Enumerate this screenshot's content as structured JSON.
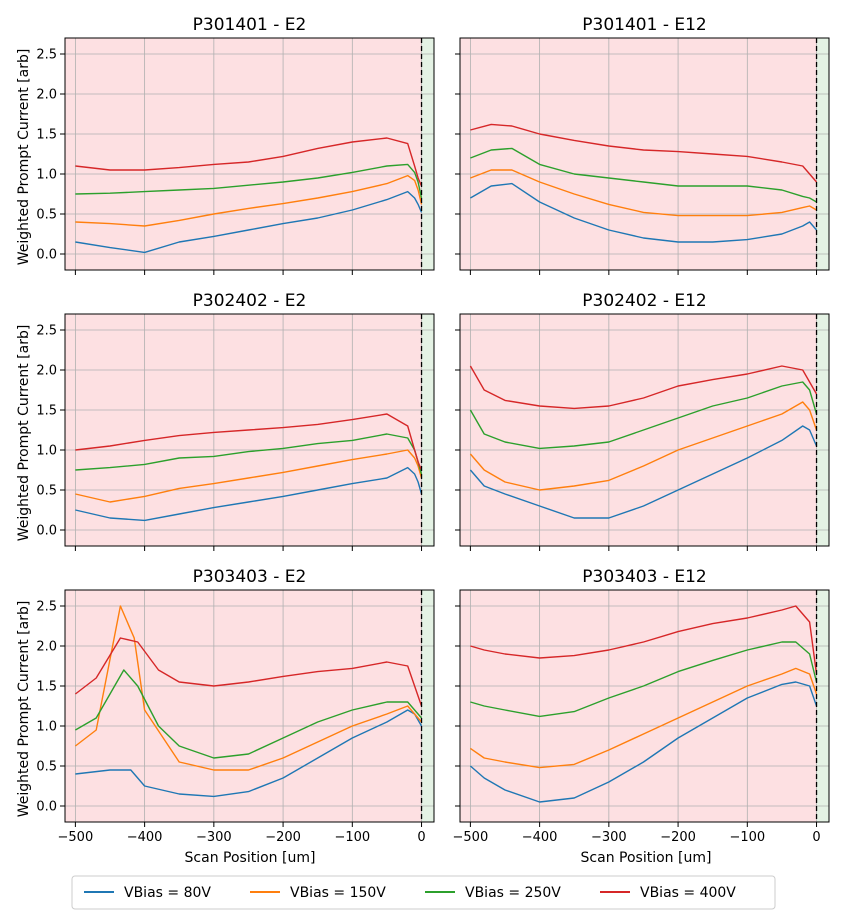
{
  "figure": {
    "ylabel": "Weighted Prompt Current [arb]",
    "xlabel": "Scan Position [um]",
    "colors": {
      "region_main": "#fde0e2",
      "region_edge": "#e4f2e4",
      "grid": "#b0b0b0"
    }
  },
  "legend": [
    {
      "label": "VBias = 80V",
      "color": "#1f77b4"
    },
    {
      "label": "VBias = 150V",
      "color": "#ff7f0e"
    },
    {
      "label": "VBias = 250V",
      "color": "#2ca02c"
    },
    {
      "label": "VBias = 400V",
      "color": "#d62728"
    }
  ],
  "chart_data": [
    {
      "type": "line",
      "title": "P301401 - E2",
      "xlabel": "",
      "ylabel": "Weighted Prompt Current [arb]",
      "xlim": [
        -515,
        18
      ],
      "ylim": [
        -0.2,
        2.7
      ],
      "xticks": [
        -500,
        -400,
        -300,
        -200,
        -100,
        0
      ],
      "yticks": [
        0.0,
        0.5,
        1.0,
        1.5,
        2.0,
        2.5
      ],
      "edge_marker_x": 0,
      "grid": true,
      "series": [
        {
          "name": "VBias = 80V",
          "x": [
            -500,
            -450,
            -400,
            -350,
            -300,
            -250,
            -200,
            -150,
            -100,
            -50,
            -20,
            -10,
            -5,
            0
          ],
          "values": [
            0.15,
            0.08,
            0.02,
            0.15,
            0.22,
            0.3,
            0.38,
            0.45,
            0.55,
            0.68,
            0.78,
            0.7,
            0.62,
            0.52
          ]
        },
        {
          "name": "VBias = 150V",
          "x": [
            -500,
            -450,
            -400,
            -350,
            -300,
            -250,
            -200,
            -150,
            -100,
            -50,
            -20,
            -10,
            -5,
            0
          ],
          "values": [
            0.4,
            0.38,
            0.35,
            0.42,
            0.5,
            0.57,
            0.63,
            0.7,
            0.78,
            0.88,
            0.98,
            0.92,
            0.8,
            0.62
          ]
        },
        {
          "name": "VBias = 250V",
          "x": [
            -500,
            -450,
            -400,
            -350,
            -300,
            -250,
            -200,
            -150,
            -100,
            -50,
            -20,
            -10,
            -5,
            0
          ],
          "values": [
            0.75,
            0.76,
            0.78,
            0.8,
            0.82,
            0.86,
            0.9,
            0.95,
            1.02,
            1.1,
            1.12,
            1.02,
            0.9,
            0.7
          ]
        },
        {
          "name": "VBias = 400V",
          "x": [
            -500,
            -450,
            -400,
            -350,
            -300,
            -250,
            -200,
            -150,
            -100,
            -50,
            -20,
            -10,
            -5,
            0
          ],
          "values": [
            1.1,
            1.05,
            1.05,
            1.08,
            1.12,
            1.15,
            1.22,
            1.32,
            1.4,
            1.45,
            1.38,
            1.1,
            0.95,
            0.85
          ]
        }
      ]
    },
    {
      "type": "line",
      "title": "P301401 - E12",
      "xlabel": "",
      "ylabel": "",
      "xlim": [
        -515,
        18
      ],
      "ylim": [
        -0.2,
        2.7
      ],
      "xticks": [
        -500,
        -400,
        -300,
        -200,
        -100,
        0
      ],
      "yticks": [
        0.0,
        0.5,
        1.0,
        1.5,
        2.0,
        2.5
      ],
      "edge_marker_x": 0,
      "grid": true,
      "series": [
        {
          "name": "VBias = 80V",
          "x": [
            -500,
            -470,
            -440,
            -400,
            -350,
            -300,
            -250,
            -200,
            -150,
            -100,
            -50,
            -20,
            -10,
            0
          ],
          "values": [
            0.7,
            0.85,
            0.88,
            0.65,
            0.45,
            0.3,
            0.2,
            0.15,
            0.15,
            0.18,
            0.25,
            0.35,
            0.4,
            0.3
          ]
        },
        {
          "name": "VBias = 150V",
          "x": [
            -500,
            -470,
            -440,
            -400,
            -350,
            -300,
            -250,
            -200,
            -150,
            -100,
            -50,
            -20,
            -10,
            0
          ],
          "values": [
            0.95,
            1.05,
            1.05,
            0.9,
            0.75,
            0.62,
            0.52,
            0.48,
            0.48,
            0.48,
            0.52,
            0.58,
            0.6,
            0.55
          ]
        },
        {
          "name": "VBias = 250V",
          "x": [
            -500,
            -470,
            -440,
            -400,
            -350,
            -300,
            -250,
            -200,
            -150,
            -100,
            -50,
            -20,
            -10,
            0
          ],
          "values": [
            1.2,
            1.3,
            1.32,
            1.12,
            1.0,
            0.95,
            0.9,
            0.85,
            0.85,
            0.85,
            0.8,
            0.72,
            0.7,
            0.65
          ]
        },
        {
          "name": "VBias = 400V",
          "x": [
            -500,
            -470,
            -440,
            -400,
            -350,
            -300,
            -250,
            -200,
            -150,
            -100,
            -50,
            -20,
            -10,
            0
          ],
          "values": [
            1.55,
            1.62,
            1.6,
            1.5,
            1.42,
            1.35,
            1.3,
            1.28,
            1.25,
            1.22,
            1.15,
            1.1,
            1.0,
            0.9
          ]
        }
      ]
    },
    {
      "type": "line",
      "title": "P302402 - E2",
      "xlabel": "",
      "ylabel": "Weighted Prompt Current [arb]",
      "xlim": [
        -515,
        18
      ],
      "ylim": [
        -0.2,
        2.7
      ],
      "xticks": [
        -500,
        -400,
        -300,
        -200,
        -100,
        0
      ],
      "yticks": [
        0.0,
        0.5,
        1.0,
        1.5,
        2.0,
        2.5
      ],
      "edge_marker_x": 0,
      "grid": true,
      "series": [
        {
          "name": "VBias = 80V",
          "x": [
            -500,
            -450,
            -400,
            -350,
            -300,
            -250,
            -200,
            -150,
            -100,
            -50,
            -20,
            -10,
            -5,
            0
          ],
          "values": [
            0.25,
            0.15,
            0.12,
            0.2,
            0.28,
            0.35,
            0.42,
            0.5,
            0.58,
            0.65,
            0.78,
            0.7,
            0.6,
            0.45
          ]
        },
        {
          "name": "VBias = 150V",
          "x": [
            -500,
            -450,
            -400,
            -350,
            -300,
            -250,
            -200,
            -150,
            -100,
            -50,
            -20,
            -10,
            -5,
            0
          ],
          "values": [
            0.45,
            0.35,
            0.42,
            0.52,
            0.58,
            0.65,
            0.72,
            0.8,
            0.88,
            0.95,
            1.0,
            0.9,
            0.8,
            0.65
          ]
        },
        {
          "name": "VBias = 250V",
          "x": [
            -500,
            -450,
            -400,
            -350,
            -300,
            -250,
            -200,
            -150,
            -100,
            -50,
            -20,
            -10,
            -5,
            0
          ],
          "values": [
            0.75,
            0.78,
            0.82,
            0.9,
            0.92,
            0.98,
            1.02,
            1.08,
            1.12,
            1.2,
            1.15,
            1.0,
            0.85,
            0.7
          ]
        },
        {
          "name": "VBias = 400V",
          "x": [
            -500,
            -450,
            -400,
            -350,
            -300,
            -250,
            -200,
            -150,
            -100,
            -50,
            -20,
            -10,
            -5,
            0
          ],
          "values": [
            1.0,
            1.05,
            1.12,
            1.18,
            1.22,
            1.25,
            1.28,
            1.32,
            1.38,
            1.45,
            1.3,
            1.0,
            0.85,
            0.75
          ]
        }
      ]
    },
    {
      "type": "line",
      "title": "P302402 - E12",
      "xlabel": "",
      "ylabel": "",
      "xlim": [
        -515,
        18
      ],
      "ylim": [
        -0.2,
        2.7
      ],
      "xticks": [
        -500,
        -400,
        -300,
        -200,
        -100,
        0
      ],
      "yticks": [
        0.0,
        0.5,
        1.0,
        1.5,
        2.0,
        2.5
      ],
      "edge_marker_x": 0,
      "grid": true,
      "series": [
        {
          "name": "VBias = 80V",
          "x": [
            -500,
            -480,
            -450,
            -400,
            -350,
            -300,
            -250,
            -200,
            -150,
            -100,
            -50,
            -20,
            -10,
            0
          ],
          "values": [
            0.75,
            0.55,
            0.45,
            0.3,
            0.15,
            0.15,
            0.3,
            0.5,
            0.7,
            0.9,
            1.12,
            1.3,
            1.25,
            1.05
          ]
        },
        {
          "name": "VBias = 150V",
          "x": [
            -500,
            -480,
            -450,
            -400,
            -350,
            -300,
            -250,
            -200,
            -150,
            -100,
            -50,
            -20,
            -10,
            0
          ],
          "values": [
            0.95,
            0.75,
            0.6,
            0.5,
            0.55,
            0.62,
            0.8,
            1.0,
            1.15,
            1.3,
            1.45,
            1.6,
            1.5,
            1.25
          ]
        },
        {
          "name": "VBias = 250V",
          "x": [
            -500,
            -480,
            -450,
            -400,
            -350,
            -300,
            -250,
            -200,
            -150,
            -100,
            -50,
            -20,
            -10,
            0
          ],
          "values": [
            1.5,
            1.2,
            1.1,
            1.02,
            1.05,
            1.1,
            1.25,
            1.4,
            1.55,
            1.65,
            1.8,
            1.85,
            1.75,
            1.45
          ]
        },
        {
          "name": "VBias = 400V",
          "x": [
            -500,
            -480,
            -450,
            -400,
            -350,
            -300,
            -250,
            -200,
            -150,
            -100,
            -50,
            -20,
            -10,
            0
          ],
          "values": [
            2.05,
            1.75,
            1.62,
            1.55,
            1.52,
            1.55,
            1.65,
            1.8,
            1.88,
            1.95,
            2.05,
            2.0,
            1.85,
            1.7
          ]
        }
      ]
    },
    {
      "type": "line",
      "title": "P303403 - E2",
      "xlabel": "Scan Position [um]",
      "ylabel": "Weighted Prompt Current [arb]",
      "xlim": [
        -515,
        18
      ],
      "ylim": [
        -0.2,
        2.7
      ],
      "xticks": [
        -500,
        -400,
        -300,
        -200,
        -100,
        0
      ],
      "yticks": [
        0.0,
        0.5,
        1.0,
        1.5,
        2.0,
        2.5
      ],
      "edge_marker_x": 0,
      "grid": true,
      "series": [
        {
          "name": "VBias = 80V",
          "x": [
            -500,
            -450,
            -420,
            -400,
            -350,
            -300,
            -250,
            -200,
            -150,
            -100,
            -50,
            -20,
            -10,
            0
          ],
          "values": [
            0.4,
            0.45,
            0.45,
            0.25,
            0.15,
            0.12,
            0.18,
            0.35,
            0.6,
            0.85,
            1.05,
            1.2,
            1.15,
            1.0
          ]
        },
        {
          "name": "VBias = 150V",
          "x": [
            -500,
            -470,
            -435,
            -415,
            -400,
            -350,
            -300,
            -250,
            -200,
            -150,
            -100,
            -50,
            -20,
            0
          ],
          "values": [
            0.75,
            0.95,
            2.5,
            2.1,
            1.2,
            0.55,
            0.45,
            0.45,
            0.6,
            0.8,
            1.0,
            1.15,
            1.25,
            1.05
          ]
        },
        {
          "name": "VBias = 250V",
          "x": [
            -500,
            -470,
            -430,
            -410,
            -380,
            -350,
            -300,
            -250,
            -200,
            -150,
            -100,
            -50,
            -20,
            0
          ],
          "values": [
            0.95,
            1.1,
            1.7,
            1.5,
            1.0,
            0.75,
            0.6,
            0.65,
            0.85,
            1.05,
            1.2,
            1.3,
            1.3,
            1.1
          ]
        },
        {
          "name": "VBias = 400V",
          "x": [
            -500,
            -470,
            -435,
            -410,
            -380,
            -350,
            -300,
            -250,
            -200,
            -150,
            -100,
            -50,
            -20,
            0
          ],
          "values": [
            1.4,
            1.6,
            2.1,
            2.05,
            1.7,
            1.55,
            1.5,
            1.55,
            1.62,
            1.68,
            1.72,
            1.8,
            1.75,
            1.25
          ]
        }
      ]
    },
    {
      "type": "line",
      "title": "P303403 - E12",
      "xlabel": "Scan Position [um]",
      "ylabel": "",
      "xlim": [
        -515,
        18
      ],
      "ylim": [
        -0.2,
        2.7
      ],
      "xticks": [
        -500,
        -400,
        -300,
        -200,
        -100,
        0
      ],
      "yticks": [
        0.0,
        0.5,
        1.0,
        1.5,
        2.0,
        2.5
      ],
      "edge_marker_x": 0,
      "grid": true,
      "series": [
        {
          "name": "VBias = 80V",
          "x": [
            -500,
            -480,
            -450,
            -400,
            -350,
            -300,
            -250,
            -200,
            -150,
            -100,
            -50,
            -30,
            -10,
            0
          ],
          "values": [
            0.5,
            0.35,
            0.2,
            0.05,
            0.1,
            0.3,
            0.55,
            0.85,
            1.1,
            1.35,
            1.52,
            1.55,
            1.5,
            1.25
          ]
        },
        {
          "name": "VBias = 150V",
          "x": [
            -500,
            -480,
            -450,
            -400,
            -350,
            -300,
            -250,
            -200,
            -150,
            -100,
            -50,
            -30,
            -10,
            0
          ],
          "values": [
            0.72,
            0.6,
            0.55,
            0.48,
            0.52,
            0.7,
            0.9,
            1.1,
            1.3,
            1.5,
            1.65,
            1.72,
            1.65,
            1.4
          ]
        },
        {
          "name": "VBias = 250V",
          "x": [
            -500,
            -480,
            -450,
            -400,
            -350,
            -300,
            -250,
            -200,
            -150,
            -100,
            -50,
            -30,
            -10,
            0
          ],
          "values": [
            1.3,
            1.25,
            1.2,
            1.12,
            1.18,
            1.35,
            1.5,
            1.68,
            1.82,
            1.95,
            2.05,
            2.05,
            1.9,
            1.55
          ]
        },
        {
          "name": "VBias = 400V",
          "x": [
            -500,
            -480,
            -450,
            -400,
            -350,
            -300,
            -250,
            -200,
            -150,
            -100,
            -50,
            -30,
            -10,
            0
          ],
          "values": [
            2.0,
            1.95,
            1.9,
            1.85,
            1.88,
            1.95,
            2.05,
            2.18,
            2.28,
            2.35,
            2.45,
            2.5,
            2.3,
            1.65
          ]
        }
      ]
    }
  ]
}
